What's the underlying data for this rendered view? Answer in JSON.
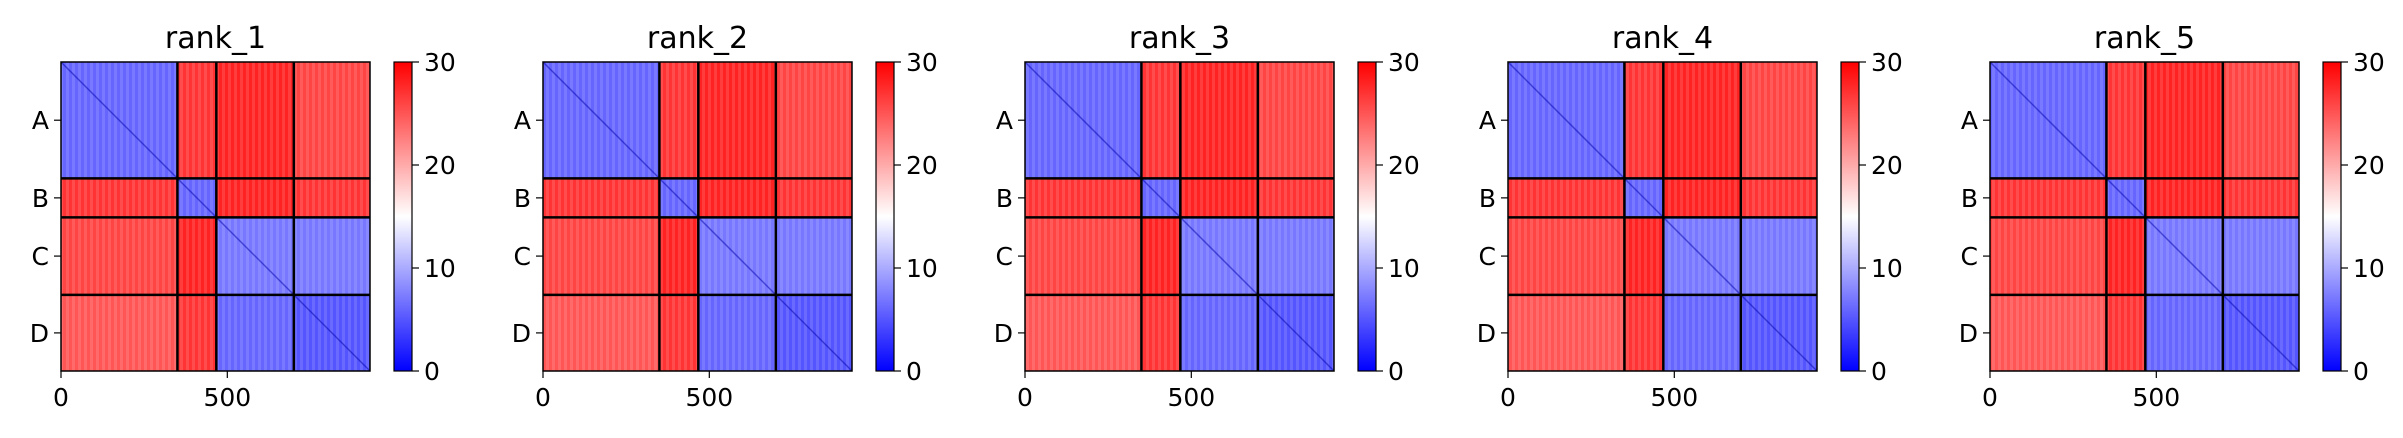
{
  "chart_data": {
    "type": "heatmap",
    "colormap": {
      "low": "#0000ff",
      "mid": "#ffffff",
      "high": "#ff0000"
    },
    "color_range": [
      0,
      30
    ],
    "colorbar_ticks": [
      "0",
      "10",
      "20",
      "30"
    ],
    "x_range": [
      0,
      929
    ],
    "x_ticks": [
      {
        "value": 0,
        "label": "0"
      },
      {
        "value": 500,
        "label": "500"
      }
    ],
    "chain_boundaries": [
      350,
      467,
      700
    ],
    "y_tick_labels": [
      "A",
      "B",
      "C",
      "D"
    ],
    "panels": [
      {
        "title": "rank_1"
      },
      {
        "title": "rank_2"
      },
      {
        "title": "rank_3"
      },
      {
        "title": "rank_4"
      },
      {
        "title": "rank_5"
      }
    ],
    "block_levels": [
      [
        6,
        27,
        28,
        26
      ],
      [
        27,
        6,
        28,
        27
      ],
      [
        26,
        28,
        7,
        7
      ],
      [
        25,
        27,
        6,
        5
      ]
    ]
  }
}
